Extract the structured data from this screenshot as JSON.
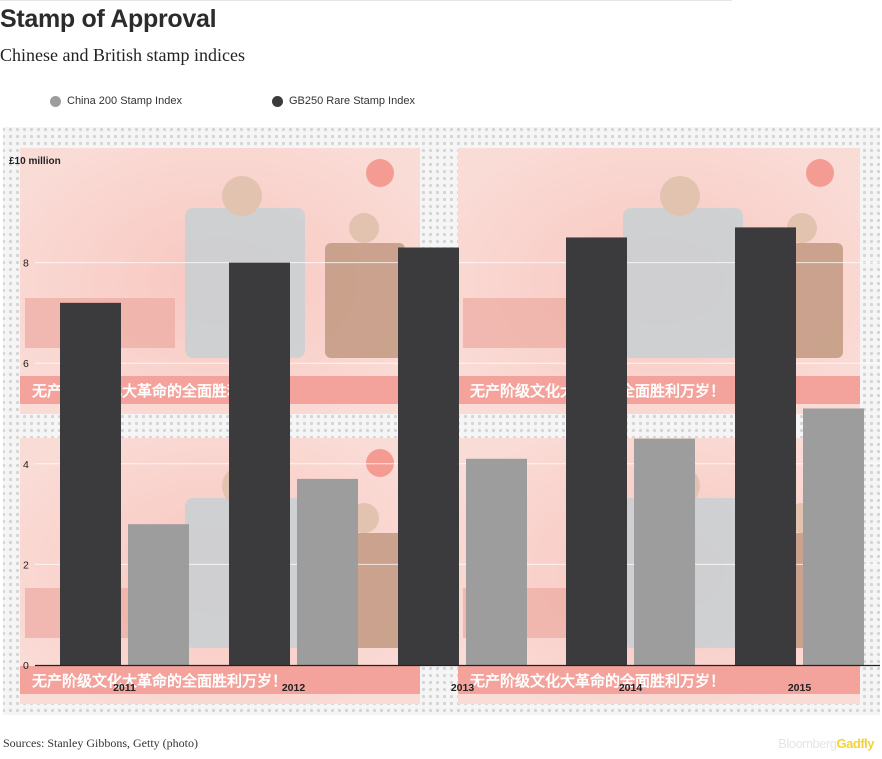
{
  "title": "Stamp of Approval",
  "subtitle": "Chinese and British stamp indices",
  "legend": [
    {
      "label": "China 200 Stamp Index",
      "color": "#9d9d9d"
    },
    {
      "label": "GB250 Rare Stamp Index",
      "color": "#3b3b3d"
    }
  ],
  "source": "Sources: Stanley Gibbons, Getty (photo)",
  "brand": {
    "part1": "Bloomberg",
    "part2": "Gadfly"
  },
  "background_stamp_text": "无产阶级文化大革命的全面胜利万岁！",
  "colors": {
    "china": "#9d9d9d",
    "gb": "#3b3b3d",
    "stamp_red": "#f08a80"
  },
  "chart_data": {
    "type": "bar",
    "categories": [
      "2011",
      "2012",
      "2013",
      "2014",
      "2015"
    ],
    "series": [
      {
        "name": "GB250 Rare Stamp Index",
        "values": [
          7.2,
          8.0,
          8.3,
          8.5,
          8.7
        ]
      },
      {
        "name": "China 200 Stamp Index",
        "values": [
          2.8,
          3.7,
          4.1,
          4.5,
          5.1
        ]
      }
    ],
    "ylim": [
      0,
      10
    ],
    "yticks": [
      0,
      2,
      4,
      6,
      8
    ],
    "y_top_label": "£10  million",
    "grid": true,
    "legend_position": "top"
  }
}
